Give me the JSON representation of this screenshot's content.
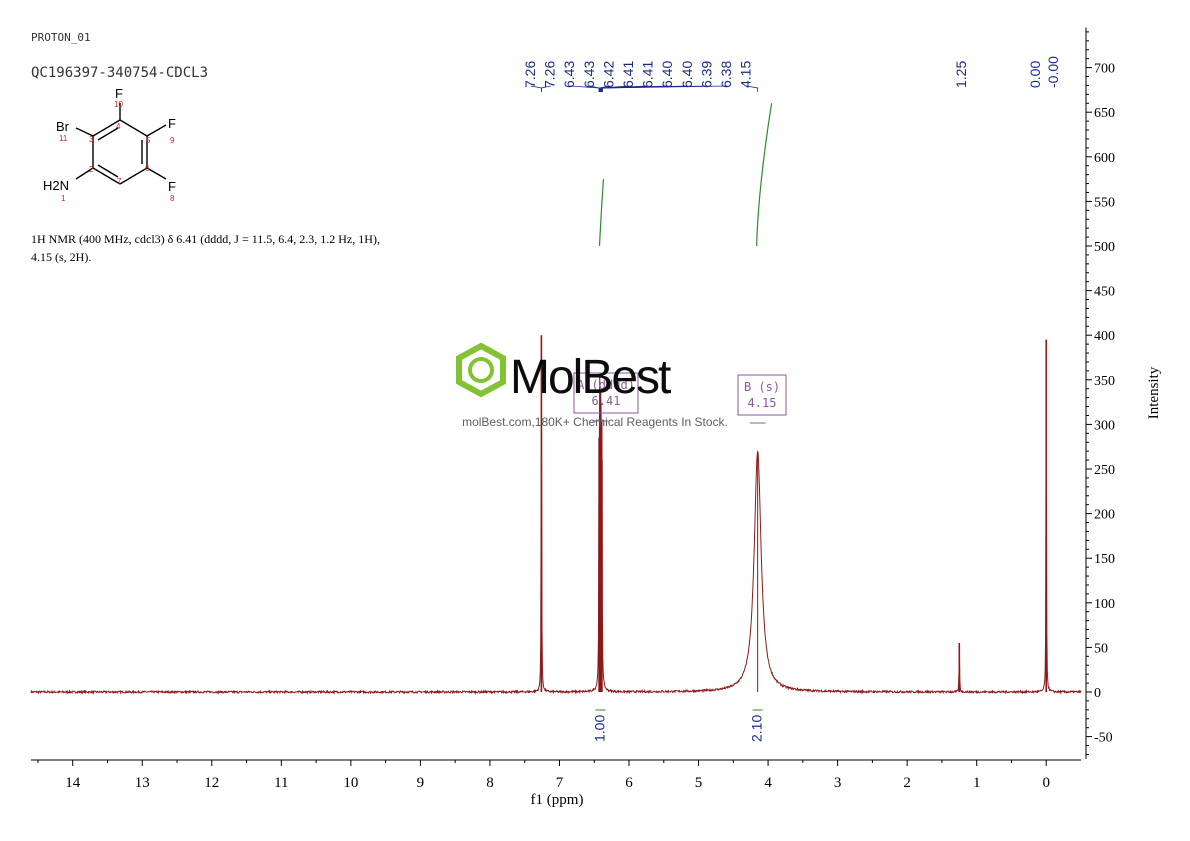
{
  "header": {
    "experiment": "PROTON_01",
    "sample": "QC196397-340754-CDCL3"
  },
  "structure": {
    "atoms": {
      "br": "Br",
      "f": "F",
      "h2n": "H2N"
    },
    "numbers": [
      "10",
      "11",
      "3",
      "4",
      "5",
      "9",
      "2",
      "7",
      "6",
      "1",
      "8"
    ]
  },
  "description": {
    "line1": "1H NMR (400 MHz, cdcl3) δ 6.41 (dddd, J = 11.5, 6.4, 2.3, 1.2 Hz, 1H),",
    "line2": "4.15 (s, 2H)."
  },
  "watermark": {
    "brand": "MolBest",
    "tagline": "molBest.com,180K+ Chemical Reagents In Stock."
  },
  "colors": {
    "spectrum": "#8b1a1a",
    "integral": "#2e8b2e",
    "peak_label": "#1a2a8a",
    "multiplet_box": "#8a5a9a",
    "axis": "#000000",
    "logo": "#7cc02a"
  },
  "chart_data": {
    "type": "line",
    "xlabel": "f1 (ppm)",
    "ylabel": "Intensity",
    "xlim": [
      14.6,
      -0.5
    ],
    "ylim": [
      -75,
      745
    ],
    "x_ticks": [
      14,
      13,
      12,
      11,
      10,
      9,
      8,
      7,
      6,
      5,
      4,
      3,
      2,
      1,
      0
    ],
    "y_ticks": [
      -50,
      0,
      50,
      100,
      150,
      200,
      250,
      300,
      350,
      400,
      450,
      500,
      550,
      600,
      650,
      700
    ],
    "peaks": [
      {
        "ppm": 7.26,
        "height": 400,
        "width": 0.004
      },
      {
        "ppm": 6.43,
        "height": 285,
        "width": 0.004
      },
      {
        "ppm": 6.42,
        "height": 275,
        "width": 0.004
      },
      {
        "ppm": 6.41,
        "height": 280,
        "width": 0.004
      },
      {
        "ppm": 6.4,
        "height": 270,
        "width": 0.004
      },
      {
        "ppm": 6.39,
        "height": 260,
        "width": 0.004
      },
      {
        "ppm": 4.15,
        "height": 270,
        "width": 0.06
      },
      {
        "ppm": 1.25,
        "height": 55,
        "width": 0.004
      },
      {
        "ppm": 0.0,
        "height": 395,
        "width": 0.004
      }
    ],
    "peak_labels": {
      "left": [
        "7.26",
        "7.26",
        "6.43",
        "6.43",
        "6.42",
        "6.41",
        "6.41",
        "6.40",
        "6.40",
        "6.39",
        "6.38",
        "4.15"
      ],
      "right": [
        "1.25",
        "0.00",
        "-0.00"
      ]
    },
    "multiplets": [
      {
        "name": "A (dddd)",
        "shift": "6.41"
      },
      {
        "name": "B (s)",
        "shift": "4.15"
      }
    ],
    "integrals": [
      {
        "ppm": 6.41,
        "value": "1.00",
        "y_from": 500,
        "y_to": 575
      },
      {
        "ppm": 4.15,
        "value": "2.10",
        "y_from": 500,
        "y_to": 660
      }
    ]
  }
}
